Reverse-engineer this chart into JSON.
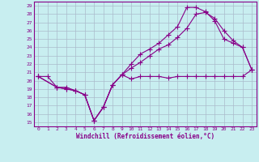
{
  "title": "",
  "xlabel": "Windchill (Refroidissement éolien,°C)",
  "background_color": "#c8eef0",
  "grid_color": "#aabbcc",
  "line_color": "#880088",
  "xlim": [
    -0.5,
    23.5
  ],
  "ylim": [
    14.5,
    29.5
  ],
  "xticks": [
    0,
    1,
    2,
    3,
    4,
    5,
    6,
    7,
    8,
    9,
    10,
    11,
    12,
    13,
    14,
    15,
    16,
    17,
    18,
    19,
    20,
    21,
    22,
    23
  ],
  "yticks": [
    15,
    16,
    17,
    18,
    19,
    20,
    21,
    22,
    23,
    24,
    25,
    26,
    27,
    28,
    29
  ],
  "line1_x": [
    0,
    1,
    2,
    3,
    4,
    5,
    6,
    7,
    8,
    9,
    10,
    11,
    12,
    13,
    14,
    15,
    16,
    17,
    18,
    19,
    20,
    21,
    22,
    23
  ],
  "line1_y": [
    20.5,
    20.5,
    19.2,
    19.2,
    18.8,
    18.3,
    15.2,
    16.8,
    19.5,
    20.7,
    20.2,
    20.5,
    20.5,
    20.5,
    20.3,
    20.5,
    20.5,
    20.5,
    20.5,
    20.5,
    20.5,
    20.5,
    20.5,
    21.3
  ],
  "line2_x": [
    0,
    2,
    3,
    4,
    5,
    6,
    7,
    8,
    9,
    10,
    11,
    12,
    13,
    14,
    15,
    16,
    17,
    18,
    19,
    20,
    21,
    22,
    23
  ],
  "line2_y": [
    20.5,
    19.2,
    19.0,
    18.8,
    18.3,
    15.2,
    16.8,
    19.5,
    20.7,
    21.5,
    22.2,
    23.0,
    23.8,
    24.3,
    25.2,
    26.3,
    28.0,
    28.2,
    27.5,
    26.0,
    24.8,
    24.0,
    21.3
  ],
  "line3_x": [
    0,
    2,
    3,
    4,
    5,
    6,
    7,
    8,
    9,
    10,
    11,
    12,
    13,
    14,
    15,
    16,
    17,
    18,
    19,
    20,
    21,
    22,
    23
  ],
  "line3_y": [
    20.5,
    19.2,
    19.0,
    18.8,
    18.3,
    15.2,
    16.8,
    19.5,
    20.7,
    22.0,
    23.2,
    23.8,
    24.5,
    25.5,
    26.5,
    28.8,
    28.8,
    28.3,
    27.2,
    25.0,
    24.5,
    24.0,
    21.3
  ]
}
